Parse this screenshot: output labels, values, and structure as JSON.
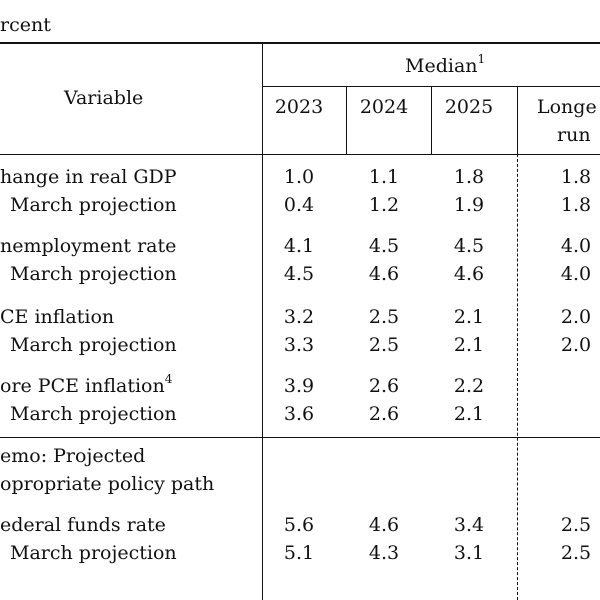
{
  "unit_label": "rcent",
  "header": {
    "variable": "Variable",
    "median": "Median",
    "median_note": "1",
    "years": [
      "2023",
      "2024",
      "2025"
    ],
    "longer_run_line1": "Longe",
    "longer_run_line2": "run"
  },
  "rows": [
    {
      "label": "hange in real GDP",
      "note": "",
      "values": [
        "1.0",
        "1.1",
        "1.8",
        "1.8"
      ]
    },
    {
      "label": "March projection",
      "note": "",
      "values": [
        "0.4",
        "1.2",
        "1.9",
        "1.8"
      ]
    },
    {
      "label": "nemployment rate",
      "note": "",
      "values": [
        "4.1",
        "4.5",
        "4.5",
        "4.0"
      ]
    },
    {
      "label": "March projection",
      "note": "",
      "values": [
        "4.5",
        "4.6",
        "4.6",
        "4.0"
      ]
    },
    {
      "label": "CE inflation",
      "note": "",
      "values": [
        "3.2",
        "2.5",
        "2.1",
        "2.0"
      ]
    },
    {
      "label": "March projection",
      "note": "",
      "values": [
        "3.3",
        "2.5",
        "2.1",
        "2.0"
      ]
    },
    {
      "label": "ore PCE inflation",
      "note": "4",
      "values": [
        "3.9",
        "2.6",
        "2.2",
        ""
      ]
    },
    {
      "label": "March projection",
      "note": "",
      "values": [
        "3.6",
        "2.6",
        "2.1",
        ""
      ]
    }
  ],
  "memo": {
    "line1": "emo: Projected",
    "line2": "opropriate policy path"
  },
  "memo_rows": [
    {
      "label": "ederal funds rate",
      "values": [
        "5.6",
        "4.6",
        "3.4",
        "2.5"
      ]
    },
    {
      "label": "March projection",
      "values": [
        "5.1",
        "4.3",
        "3.1",
        "2.5"
      ]
    }
  ]
}
